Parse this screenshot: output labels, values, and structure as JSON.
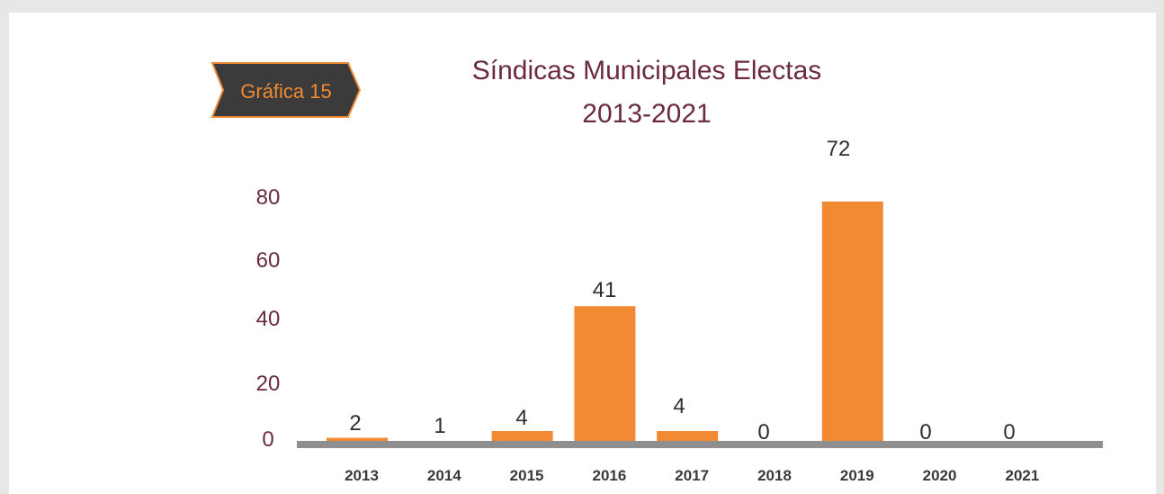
{
  "badge": {
    "label": "Gráfica 15",
    "fill_color": "#3b3b3b",
    "text_color": "#f28a34"
  },
  "chart_data": {
    "type": "bar",
    "title": "Síndicas Municipales Electas",
    "subtitle": "2013-2021",
    "categories": [
      "2013",
      "2014",
      "2015",
      "2016",
      "2017",
      "2018",
      "2019",
      "2020",
      "2021"
    ],
    "values": [
      2,
      1,
      4,
      41,
      4,
      0,
      72,
      0,
      0
    ],
    "data_labels": [
      "2",
      "1",
      "4",
      "41",
      "4",
      "0",
      "72",
      "0",
      "0"
    ],
    "y_ticks": [
      0,
      20,
      40,
      60,
      80
    ],
    "y_tick_labels": [
      "0",
      "20",
      "40",
      "60",
      "80"
    ],
    "ylim": [
      0,
      84
    ],
    "grid": false,
    "legend": false,
    "bar_color": "#f28a34",
    "axis_color": "#8e8e8e",
    "title_color": "#6b2a40"
  }
}
